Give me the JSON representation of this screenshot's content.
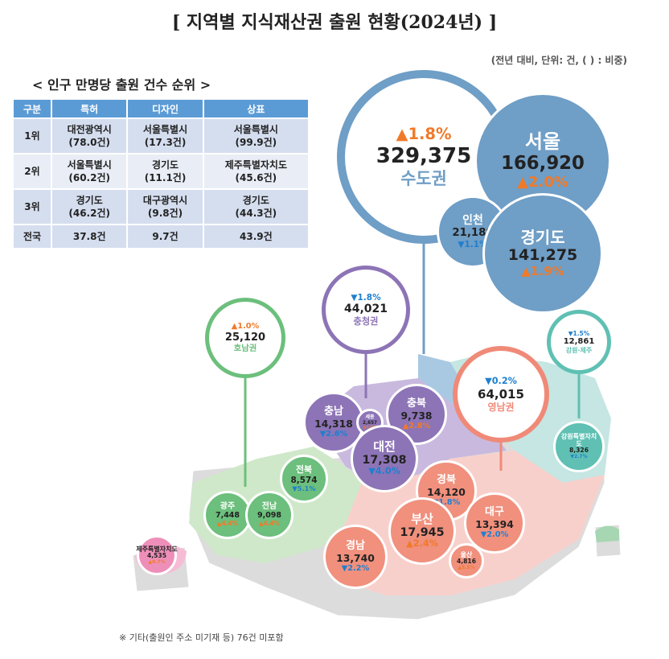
{
  "title": "[ 지역별 지식재산권 출원 현황(2024년) ]",
  "unit_note": "(전년 대비, 단위: 건, ( ) : 비중)",
  "ranking": {
    "title": "< 인구 만명당 출원 건수 순위 >",
    "headers": [
      "구분",
      "특허",
      "디자인",
      "상표"
    ],
    "rows": [
      [
        "1위",
        "대전광역시\n(78.0건)",
        "서울특별시\n(17.3건)",
        "서울특별시\n(99.9건)"
      ],
      [
        "2위",
        "서울특별시\n(60.2건)",
        "경기도\n(11.1건)",
        "제주특별자치도\n(45.6건)"
      ],
      [
        "3위",
        "경기도\n(46.2건)",
        "대구광역시\n(9.8건)",
        "경기도\n(44.3건)"
      ],
      [
        "전국",
        "37.8건",
        "9.7건",
        "43.9건"
      ]
    ]
  },
  "regions_group": [
    {
      "name": "수도권",
      "value": "329,375",
      "change": "▲1.8%",
      "dir": "up",
      "color": "#6f9ec6"
    },
    {
      "name": "충청권",
      "value": "44,021",
      "change": "▼1.8%",
      "dir": "dn",
      "color": "#8d74b6"
    },
    {
      "name": "호남권",
      "value": "25,120",
      "change": "▲1.0%",
      "dir": "up",
      "color": "#6cbf7c"
    },
    {
      "name": "영남권",
      "value": "64,015",
      "change": "▼0.2%",
      "dir": "dn",
      "color": "#f08a78"
    },
    {
      "name": "강원·제주",
      "value": "12,861",
      "change": "▼1.5%",
      "dir": "dn",
      "color": "#5fc0b3"
    }
  ],
  "regions": [
    {
      "name": "서울",
      "value": "166,920",
      "change": "▲2.0%",
      "dir": "up"
    },
    {
      "name": "인천",
      "value": "21,180",
      "change": "▼1.1%",
      "dir": "dn"
    },
    {
      "name": "경기도",
      "value": "141,275",
      "change": "▲1.9%",
      "dir": "up"
    },
    {
      "name": "충남",
      "value": "14,318",
      "change": "▼2.6%",
      "dir": "dn"
    },
    {
      "name": "세종",
      "value": "2,657",
      "change": "▲1.6%",
      "dir": "up"
    },
    {
      "name": "충북",
      "value": "9,738",
      "change": "▲2.8%",
      "dir": "up"
    },
    {
      "name": "대전",
      "value": "17,308",
      "change": "▼4.0%",
      "dir": "dn"
    },
    {
      "name": "전북",
      "value": "8,574",
      "change": "▼5.1%",
      "dir": "dn"
    },
    {
      "name": "광주",
      "value": "7,448",
      "change": "▲4.4%",
      "dir": "up"
    },
    {
      "name": "전남",
      "value": "9,098",
      "change": "▲4.4%",
      "dir": "up"
    },
    {
      "name": "제주특별자치도",
      "value": "4,535",
      "change": "▲0.7%",
      "dir": "up"
    },
    {
      "name": "경북",
      "value": "14,120",
      "change": "▼1.8%",
      "dir": "dn"
    },
    {
      "name": "부산",
      "value": "17,945",
      "change": "▲2.4%",
      "dir": "up"
    },
    {
      "name": "대구",
      "value": "13,394",
      "change": "▼2.0%",
      "dir": "dn"
    },
    {
      "name": "울산",
      "value": "4,816",
      "change": "▲5.5%",
      "dir": "up"
    },
    {
      "name": "경남",
      "value": "13,740",
      "change": "▼2.2%",
      "dir": "dn"
    },
    {
      "name": "강원특별자치도",
      "value": "8,326",
      "change": "▼2.7%",
      "dir": "dn"
    }
  ],
  "footnote": "※ 기타(출원인 주소 미기재 등) 76건 미포함"
}
